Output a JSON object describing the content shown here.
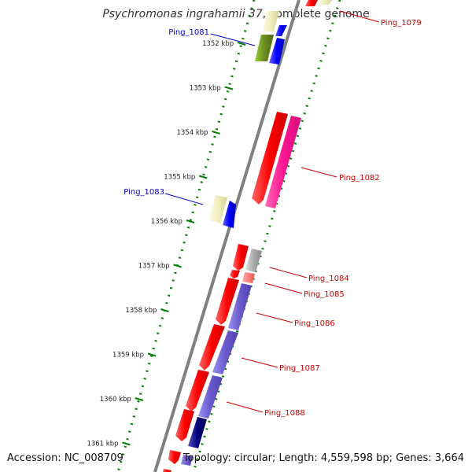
{
  "title": {
    "species": "Psychromonas ingrahamii 37",
    "suffix": ", complete genome"
  },
  "footer": {
    "accession": "Accession: NC_008709",
    "summary": "Topology: circular; Length: 4,559,598 bp; Genes: 3,664"
  },
  "ruler_unit": "kbp",
  "ruler_ticks": [
    1352,
    1353,
    1354,
    1355,
    1356,
    1357,
    1358,
    1359,
    1360,
    1361
  ],
  "genes_forward": [
    {
      "label": "Ping_1081",
      "color": "#6b8e23",
      "highlight_color": "#eeeebb"
    },
    {
      "label": "Ping_1083",
      "color": "#0000ff",
      "highlight_color": "#eeee99"
    }
  ],
  "genes_reverse": [
    {
      "label": "Ping_1079",
      "color": "#ff0000"
    },
    {
      "label": "Ping_1082",
      "color": "#ff0000",
      "feature_color": "#ff1493"
    },
    {
      "label": "Ping_1084",
      "color": "#ff0000",
      "feature_color": "#aaaaaa"
    },
    {
      "label": "Ping_1085",
      "color": "#ff0000",
      "feature_color": "#ff7f7f"
    },
    {
      "label": "Ping_1086",
      "color": "#ff0000",
      "feature_color": "#6a5acd"
    },
    {
      "label": "Ping_1087",
      "color": "#ff0000",
      "feature_color": "#6a5acd"
    },
    {
      "label": "Ping_1088",
      "color": "#ff0000",
      "feature_color": "#000080"
    }
  ],
  "colors": {
    "backbone": "#808080",
    "ruler_dots": "#008000",
    "forward_label": "#0000cc",
    "reverse_label": "#cc0000"
  }
}
